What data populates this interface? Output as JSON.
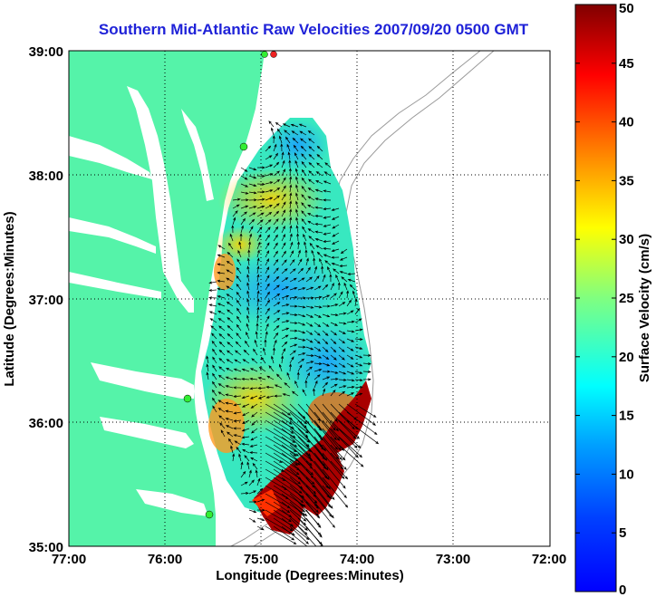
{
  "chart_data": {
    "type": "heatmap",
    "title": "Southern Mid-Atlantic Raw Velocities 2007/09/20 0500 GMT",
    "xlabel": "Longitude (Degrees:Minutes)",
    "ylabel": "Latitude (Degrees:Minutes)",
    "colorbar_label": "Surface Velocity (cm/s)",
    "x_ticks": [
      "77:00",
      "76:00",
      "75:00",
      "74:00",
      "73:00",
      "72:00"
    ],
    "y_ticks": [
      "39:00",
      "38:00",
      "37:00",
      "36:00",
      "35:00"
    ],
    "x_range_deg_west": [
      77,
      72
    ],
    "y_range_deg_north": [
      35,
      39
    ],
    "colorbar_ticks": [
      "50",
      "45",
      "40",
      "35",
      "30",
      "25",
      "20",
      "15",
      "10",
      "5",
      "0"
    ],
    "colorbar_range": [
      0,
      50
    ],
    "grid": true,
    "colormap": "jet",
    "land_color": "#55f3a9",
    "arrow_color": "#000000",
    "vector_field": [
      {
        "lon": -74.8,
        "lat": 38.2,
        "speed": 15
      },
      {
        "lon": -74.6,
        "lat": 37.8,
        "speed": 25
      },
      {
        "lon": -75.0,
        "lat": 37.4,
        "speed": 20
      },
      {
        "lon": -74.8,
        "lat": 37.0,
        "speed": 8
      },
      {
        "lon": -74.5,
        "lat": 36.7,
        "speed": 15
      },
      {
        "lon": -74.3,
        "lat": 36.4,
        "speed": 10
      },
      {
        "lon": -75.0,
        "lat": 36.2,
        "speed": 25
      },
      {
        "lon": -74.4,
        "lat": 36.0,
        "speed": 35
      },
      {
        "lon": -74.4,
        "lat": 35.6,
        "speed": 50
      },
      {
        "lon": -74.9,
        "lat": 35.4,
        "speed": 50
      }
    ]
  }
}
